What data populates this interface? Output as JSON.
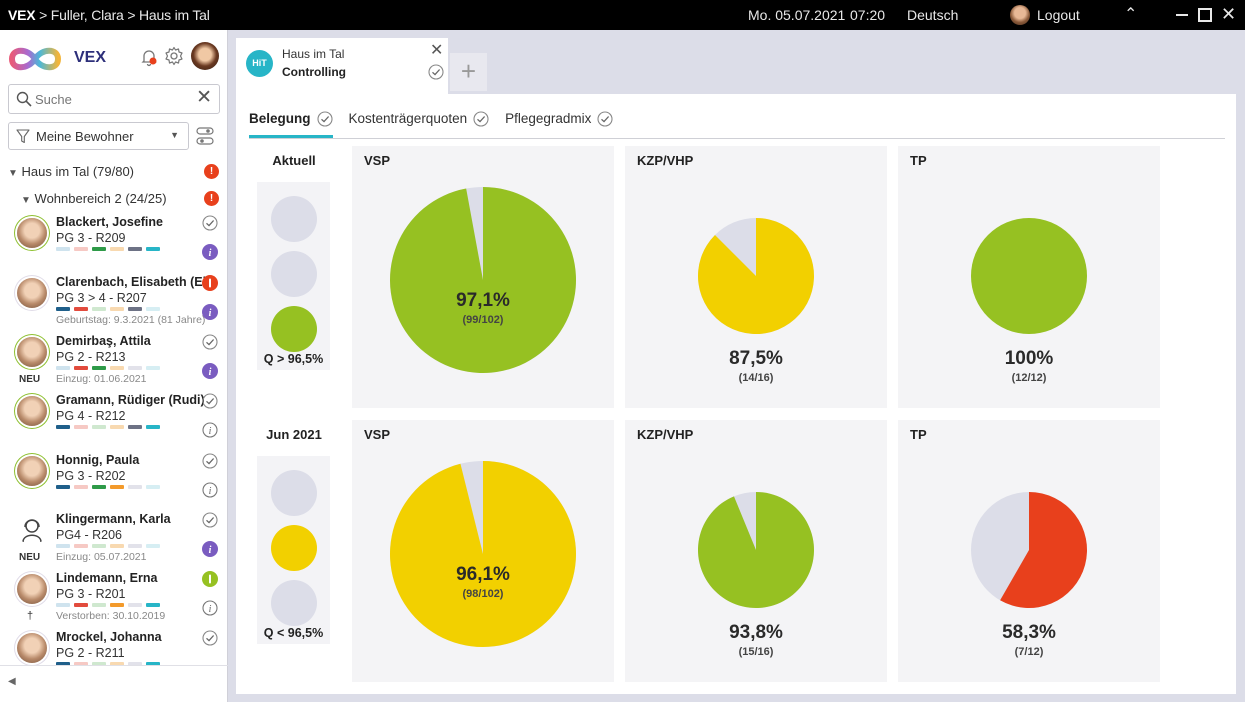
{
  "titlebar": {
    "app": "VEX",
    "breadcrumb_rest": " > Fuller, Clara > Haus im Tal",
    "date": "Mo. 05.07.2021",
    "time": "07:20",
    "language": "Deutsch",
    "logout": "Logout"
  },
  "sidebar": {
    "brand": "VEX",
    "search_placeholder": "Suche",
    "filter_label": "Meine Bewohner",
    "tree": {
      "house": "Haus im Tal (79/80)",
      "area": "Wohnbereich 2 (24/25)"
    },
    "residents": [
      {
        "name": "Blackert, Josefine",
        "pg": "PG 3 - R209",
        "sub": "",
        "tag": "",
        "status": "info-filled",
        "bars": [
          "#cfe3ee",
          "#f6c9c4",
          "#2e9a48",
          "#f8d9b0",
          "#6d7285",
          "#27b5c7"
        ]
      },
      {
        "name": "Clarenbach, Elisabeth (Elli)",
        "pg": "PG 3 > 4 - R207",
        "sub": "Geburtstag: 9.3.2021 (81 Jahre)",
        "tag": "",
        "status": "info-filled",
        "alert": true,
        "bars": [
          "#1f5f8a",
          "#e24b3d",
          "#cfe8cf",
          "#f8d9b0",
          "#6d7285",
          "#d6eef3"
        ]
      },
      {
        "name": "Demirbaş, Attila",
        "pg": "PG 2 - R213",
        "sub": "Einzug: 01.06.2021",
        "tag": "NEU",
        "status": "info-filled",
        "bars": [
          "#cfe3ee",
          "#e24b3d",
          "#2e9a48",
          "#f8d9b0",
          "#e2e2ea",
          "#d6eef3"
        ]
      },
      {
        "name": "Gramann, Rüdiger (Rudi)",
        "pg": "PG 4 - R212",
        "sub": "",
        "tag": "",
        "status": "info-outline",
        "bars": [
          "#1f5f8a",
          "#f6c9c4",
          "#cfe8cf",
          "#f8d9b0",
          "#6d7285",
          "#27b5c7"
        ]
      },
      {
        "name": "Honnig, Paula",
        "pg": "PG 3 - R202",
        "sub": "",
        "tag": "",
        "status": "info-outline",
        "bars": [
          "#1f5f8a",
          "#f6c9c4",
          "#2e9a48",
          "#f39a2b",
          "#e2e2ea",
          "#d6eef3"
        ]
      },
      {
        "name": "Klingermann, Karla",
        "pg": "PG4 - R206",
        "sub": "Einzug: 05.07.2021",
        "tag": "NEU",
        "status": "info-filled",
        "bars": [
          "#cfe3ee",
          "#f6c9c4",
          "#cfe8cf",
          "#f8d9b0",
          "#e2e2ea",
          "#d6eef3"
        ]
      },
      {
        "name": "Lindemann, Erna",
        "pg": "PG 3 - R201",
        "sub": "Verstorben: 30.10.2019",
        "tag": "†",
        "status": "info-outline",
        "green": true,
        "bars": [
          "#cfe3ee",
          "#e24b3d",
          "#cfe8cf",
          "#f39a2b",
          "#e2e2ea",
          "#27b5c7"
        ]
      },
      {
        "name": "Mrockel, Johanna",
        "pg": "PG 2 - R211",
        "sub": "",
        "tag": "",
        "status": "info-outline",
        "bars": [
          "#1f5f8a",
          "#f6c9c4",
          "#cfe8cf",
          "#f8d9b0",
          "#e2e2ea",
          "#27b5c7"
        ]
      }
    ]
  },
  "tab": {
    "badge": "HiT",
    "line1": "Haus im Tal",
    "line2": "Controlling",
    "add": "+"
  },
  "subtabs": [
    "Belegung",
    "Kostenträgerquoten",
    "Pflegegradmix"
  ],
  "colors": {
    "green": "#96c122",
    "yellow": "#f2d000",
    "red": "#e8401c",
    "grey": "#dcdde8",
    "accent": "#27b5c7",
    "purple": "#7a5cc0"
  },
  "rows": [
    {
      "label": "Aktuell",
      "lights": [
        "off",
        "off",
        "green"
      ],
      "threshold": "Q > 96,5%"
    },
    {
      "label": "Jun 2021",
      "lights": [
        "off",
        "yellow",
        "off"
      ],
      "threshold": "Q < 96,5%"
    }
  ],
  "chart_data": [
    {
      "type": "pie",
      "title": "VSP",
      "period": "Aktuell",
      "value_pct": 97.1,
      "label": "97,1%",
      "numerator": 99,
      "denominator": 102,
      "fraction": "(99/102)",
      "color": "green"
    },
    {
      "type": "pie",
      "title": "KZP/VHP",
      "period": "Aktuell",
      "value_pct": 87.5,
      "label": "87,5%",
      "numerator": 14,
      "denominator": 16,
      "fraction": "(14/16)",
      "color": "yellow"
    },
    {
      "type": "pie",
      "title": "TP",
      "period": "Aktuell",
      "value_pct": 100,
      "label": "100%",
      "numerator": 12,
      "denominator": 12,
      "fraction": "(12/12)",
      "color": "green"
    },
    {
      "type": "pie",
      "title": "VSP",
      "period": "Jun 2021",
      "value_pct": 96.1,
      "label": "96,1%",
      "numerator": 98,
      "denominator": 102,
      "fraction": "(98/102)",
      "color": "yellow"
    },
    {
      "type": "pie",
      "title": "KZP/VHP",
      "period": "Jun 2021",
      "value_pct": 93.8,
      "label": "93,8%",
      "numerator": 15,
      "denominator": 16,
      "fraction": "(15/16)",
      "color": "green"
    },
    {
      "type": "pie",
      "title": "TP",
      "period": "Jun 2021",
      "value_pct": 58.3,
      "label": "58,3%",
      "numerator": 7,
      "denominator": 12,
      "fraction": "(7/12)",
      "color": "red"
    }
  ]
}
